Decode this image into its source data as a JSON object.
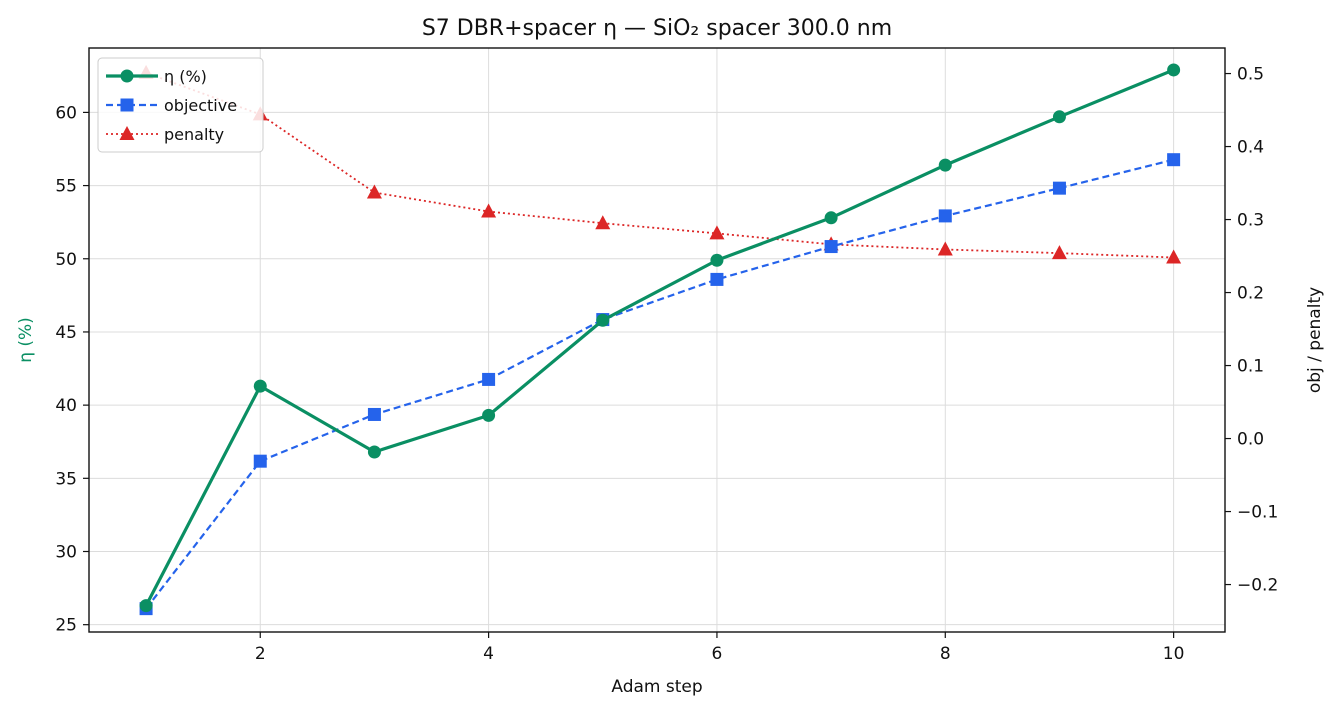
{
  "chart_data": {
    "type": "line",
    "title": "S7 DBR+spacer η — SiO₂ spacer 300.0 nm",
    "xlabel": "Adam step",
    "ylabel_left": "η (%)",
    "ylabel_right": "obj / penalty",
    "x": [
      1,
      2,
      3,
      4,
      5,
      6,
      7,
      8,
      9,
      10
    ],
    "xlim": [
      0.5,
      10.45
    ],
    "xticks": [
      2,
      4,
      6,
      8,
      10
    ],
    "ylim_left": [
      24.5,
      64.4
    ],
    "yticks_left": [
      25,
      30,
      35,
      40,
      45,
      50,
      55,
      60
    ],
    "ylim_right": [
      -0.265,
      0.535
    ],
    "yticks_right": [
      -0.2,
      -0.1,
      0.0,
      0.1,
      0.2,
      0.3,
      0.4,
      0.5
    ],
    "ytick_labels_right": [
      "−0.2",
      "−0.1",
      "0.0",
      "0.1",
      "0.2",
      "0.3",
      "0.4",
      "0.5"
    ],
    "grid": true,
    "legend_position": "top-left",
    "series": [
      {
        "name": "η (%)",
        "axis": "left",
        "color": "#0a8f63",
        "line_style": "solid",
        "marker": "circle",
        "values": [
          26.3,
          41.3,
          36.8,
          39.3,
          45.8,
          49.9,
          52.8,
          56.4,
          59.7,
          62.9
        ]
      },
      {
        "name": "objective",
        "axis": "right",
        "color": "#2563eb",
        "line_style": "dashed",
        "marker": "square",
        "values": [
          -0.233,
          -0.031,
          0.033,
          0.081,
          0.163,
          0.218,
          0.263,
          0.305,
          0.343,
          0.382
        ]
      },
      {
        "name": "penalty",
        "axis": "right",
        "color": "#dc2626",
        "line_style": "dotted",
        "marker": "triangle",
        "values": [
          0.501,
          0.444,
          0.337,
          0.311,
          0.295,
          0.281,
          0.266,
          0.259,
          0.254,
          0.248
        ]
      }
    ]
  }
}
